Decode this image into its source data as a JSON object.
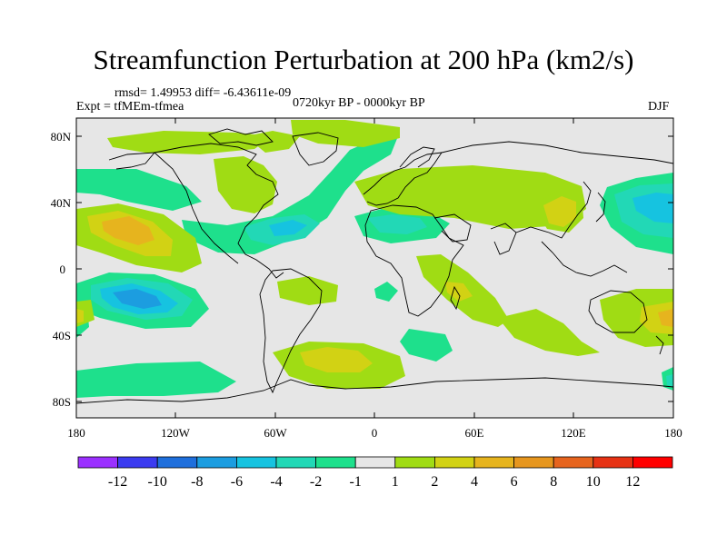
{
  "title": "Streamfunction Perturbation at 200 hPa (km2/s)",
  "stats": "rmsd= 1.49953 diff= -6.43611e-09",
  "experiment": "Expt = tfMEm-tfmea",
  "period": "0720kyr BP - 0000kyr BP",
  "season": "DJF",
  "lat_labels": [
    "80N",
    "40N",
    "0",
    "40S",
    "80S"
  ],
  "lon_labels": [
    "180",
    "120W",
    "60W",
    "0",
    "60E",
    "120E",
    "180"
  ],
  "colorbar": {
    "colors": [
      "#9b30ff",
      "#3b3bf0",
      "#1f6fdc",
      "#1c9de0",
      "#16c3e0",
      "#22d8b6",
      "#1ee08c",
      "#e6e6e6",
      "#a0dc14",
      "#d2d214",
      "#e6b41e",
      "#e6961e",
      "#e6641e",
      "#e63214",
      "#ff0000"
    ],
    "labels": [
      "-12",
      "-10",
      "-8",
      "-6",
      "-4",
      "-2",
      "-1",
      "1",
      "2",
      "4",
      "6",
      "8",
      "10",
      "12"
    ]
  },
  "map": {
    "background": "#e6e6e6",
    "contour_colors": {
      "minus1": "#1ee08c",
      "minus2": "#22d8b6",
      "minus4": "#16c3e0",
      "minus6": "#1c9de0",
      "plus1": "#a0dc14",
      "plus2": "#d2d214",
      "plus4": "#e6b41e"
    }
  }
}
